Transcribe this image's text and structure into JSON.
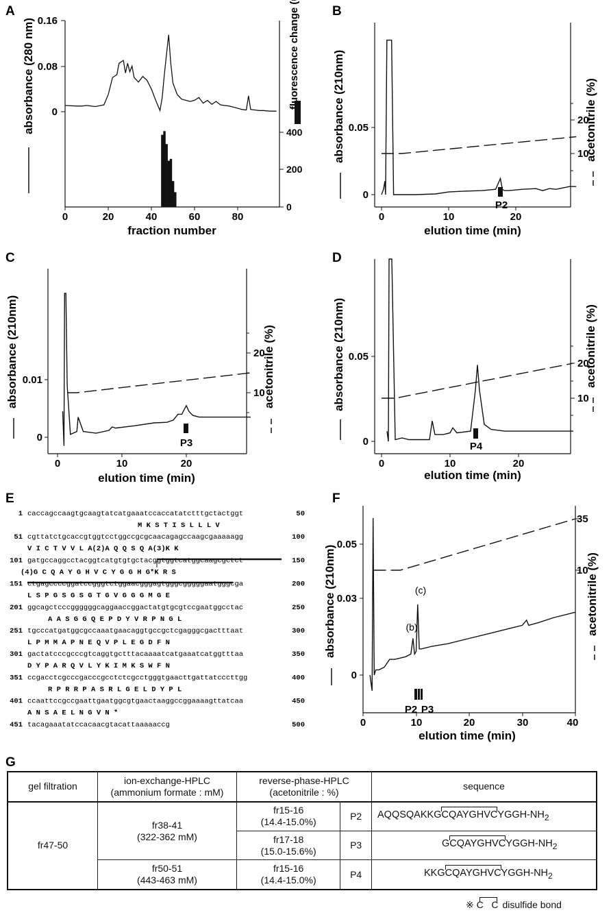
{
  "chart_data": [
    {
      "panel": "A",
      "type": "line",
      "xlabel": "fraction number",
      "ylabel": "absorbance  (280 nm)",
      "y2label": "fluorescence change  (units)",
      "xticks": [
        "0",
        "20",
        "40",
        "60",
        "80"
      ],
      "yticks": [
        "0",
        "0.08",
        "0.16"
      ],
      "y2ticks": [
        "0",
        "200",
        "400"
      ],
      "xlim": [
        0,
        100
      ],
      "ylim": [
        0,
        0.16
      ],
      "y2lim": [
        0,
        500
      ],
      "series": [
        {
          "name": "absorbance",
          "x": [
            0,
            5,
            8,
            10,
            14,
            18,
            20,
            22,
            24,
            25,
            27,
            28,
            29,
            30,
            31,
            32,
            34,
            36,
            38,
            40,
            42,
            44,
            45,
            46,
            47,
            48,
            49,
            50,
            52,
            54,
            56,
            58,
            60,
            62,
            64,
            66,
            68,
            70,
            72,
            74,
            76,
            78,
            80,
            82,
            84,
            85,
            86,
            88,
            90,
            92,
            95,
            98
          ],
          "y": [
            0.011,
            0.01,
            0.01,
            0.011,
            0.009,
            0.012,
            0.03,
            0.06,
            0.065,
            0.085,
            0.09,
            0.068,
            0.085,
            0.07,
            0.08,
            0.06,
            0.052,
            0.062,
            0.055,
            0.04,
            0.02,
            0.002,
            0.025,
            0.065,
            0.1,
            0.135,
            0.085,
            0.05,
            0.03,
            0.022,
            0.02,
            0.018,
            0.02,
            0.025,
            0.015,
            0.02,
            0.013,
            0.018,
            0.012,
            0.011,
            0.01,
            0.008,
            0.006,
            0.004,
            0.003,
            0.028,
            0.004,
            0.003,
            0.002,
            0.002,
            0.001,
            0.001
          ]
        },
        {
          "name": "fluorescence",
          "x": [
            45,
            46,
            47,
            48,
            49,
            50,
            51
          ],
          "y": [
            390,
            410,
            340,
            250,
            260,
            140,
            80
          ]
        }
      ]
    },
    {
      "panel": "B",
      "type": "line",
      "xlabel": "elution time (min)",
      "ylabel": "absorbance (210nm)",
      "y2label": "acetonitrile (%)",
      "xticks": [
        "0",
        "10",
        "20"
      ],
      "yticks": [
        "0",
        "0.05"
      ],
      "y2ticks": [
        "10",
        "20"
      ],
      "xlim": [
        -1,
        29
      ],
      "ylim": [
        0,
        0.05
      ],
      "peak_label": "P2",
      "series": [
        {
          "name": "absorbance",
          "x": [
            0,
            0.3,
            0.5,
            0.6,
            0.8,
            1.2,
            1.5,
            1.8,
            2,
            3,
            5,
            8,
            10,
            12,
            15,
            17,
            17.7,
            18,
            18.3,
            19,
            21,
            23,
            24,
            25,
            26,
            27,
            28,
            29
          ],
          "y": [
            0,
            0.004,
            0.01,
            0.0,
            0.115,
            0.115,
            0.115,
            0.0,
            0.0,
            0.0,
            0.0,
            0.0005,
            0.002,
            0.0025,
            0.003,
            0.004,
            0.012,
            0.004,
            0.003,
            0.003,
            0.004,
            0.0045,
            0.003,
            0.0045,
            0.004,
            0.005,
            0.006,
            0.006
          ]
        },
        {
          "name": "acetonitrile",
          "x": [
            0,
            3,
            29
          ],
          "y": [
            10,
            10,
            15
          ]
        }
      ]
    },
    {
      "panel": "C",
      "type": "line",
      "xlabel": "elution time (min)",
      "ylabel": "absorbance (210nm)",
      "y2label": "acetonitrile (%)",
      "xticks": [
        "0",
        "10",
        "20"
      ],
      "yticks": [
        "0",
        "0.01"
      ],
      "y2ticks": [
        "10",
        "20"
      ],
      "xlim": [
        -1,
        30
      ],
      "ylim": [
        0,
        0.01
      ],
      "peak_label": "P3",
      "series": [
        {
          "name": "absorbance",
          "x": [
            0.8,
            1,
            1.1,
            1.3,
            1.5,
            2,
            3,
            3.2,
            4,
            6,
            8,
            8.5,
            9,
            12,
            15,
            17,
            18,
            18.7,
            19.3,
            20,
            20.4,
            21,
            22,
            25,
            28,
            30
          ],
          "y": [
            0.0045,
            -0.0015,
            0.025,
            0.025,
            0.009,
            0.0005,
            0.001,
            0.0035,
            0.001,
            0.0007,
            0.0012,
            0.0018,
            0.0016,
            0.002,
            0.0025,
            0.0026,
            0.003,
            0.004,
            0.004,
            0.0055,
            0.0045,
            0.0038,
            0.0035,
            0.0035,
            0.0035,
            0.0035
          ]
        },
        {
          "name": "acetonitrile",
          "x": [
            1.5,
            3,
            30
          ],
          "y": [
            10,
            10,
            15
          ]
        }
      ]
    },
    {
      "panel": "D",
      "type": "line",
      "xlabel": "elution time (min)",
      "ylabel": "absorbance (210nm)",
      "y2label": "acetonitrile (%)",
      "xticks": [
        "0",
        "10",
        "20"
      ],
      "yticks": [
        "0",
        "0.05"
      ],
      "y2ticks": [
        "10",
        "20"
      ],
      "xlim": [
        -1,
        28
      ],
      "ylim": [
        0,
        0.05
      ],
      "peak_label": "P4",
      "series": [
        {
          "name": "absorbance",
          "x": [
            0.8,
            1,
            1.1,
            1.3,
            1.5,
            2,
            3,
            4,
            6,
            7,
            7.4,
            7.8,
            9,
            10,
            10.4,
            11,
            13,
            13.7,
            14,
            14.3,
            15,
            16,
            18,
            21,
            25,
            28
          ],
          "y": [
            0.006,
            0.0,
            0.115,
            0.115,
            0.115,
            0.001,
            0.002,
            0.001,
            0.001,
            0.001,
            0.012,
            0.004,
            0.004,
            0.005,
            0.008,
            0.005,
            0.006,
            0.03,
            0.045,
            0.03,
            0.01,
            0.007,
            0.006,
            0.006,
            0.006,
            0.006
          ]
        },
        {
          "name": "acetonitrile",
          "x": [
            0,
            2,
            28
          ],
          "y": [
            10,
            10,
            20
          ]
        }
      ]
    },
    {
      "panel": "F",
      "type": "line",
      "xlabel": "elution time (min)",
      "ylabel": "absorbance (210nm)",
      "y2label": "acetonitrile (%)",
      "xticks": [
        "0",
        "10",
        "20",
        "30",
        "40"
      ],
      "yticks": [
        "0",
        "0.03",
        "0.05"
      ],
      "y2ticks": [
        "10",
        "35"
      ],
      "xlim": [
        0,
        40
      ],
      "ylim": [
        0,
        0.05
      ],
      "peak_labels": [
        "(b)",
        "(c)",
        "P2",
        "P3"
      ],
      "series": [
        {
          "name": "absorbance",
          "x": [
            1.3,
            1.7,
            1.9,
            2.1,
            2.4,
            3,
            4,
            5,
            6,
            8,
            9,
            9.4,
            9.7,
            10,
            10.3,
            10.6,
            11,
            13,
            16,
            20,
            24,
            28,
            30,
            30.8,
            31.2,
            33,
            36,
            40
          ],
          "y": [
            0.0,
            -0.006,
            0.06,
            0.0,
            0.002,
            0.002,
            0.003,
            0.006,
            0.006,
            0.007,
            0.008,
            0.014,
            0.008,
            0.009,
            0.027,
            0.01,
            0.01,
            0.011,
            0.012,
            0.014,
            0.016,
            0.018,
            0.019,
            0.021,
            0.019,
            0.02,
            0.022,
            0.024
          ]
        },
        {
          "name": "acetonitrile",
          "x": [
            2,
            7,
            40
          ],
          "y": [
            10,
            10,
            35
          ]
        }
      ]
    }
  ],
  "panel_letters": {
    "a": "A",
    "b": "B",
    "c": "C",
    "d": "D",
    "e": "E",
    "f": "F",
    "g": "G"
  },
  "sequence_panel": {
    "lines": [
      {
        "start": "1",
        "seq": "caccagccaagtgcaagtatcatgaaatccaccatatctttgctactggt",
        "end": "50",
        "aa": "M K S T I S L L L V"
      },
      {
        "start": "51",
        "seq": "cgttatctgcaccgtggtcctggccgcgcaacagagccaagcgaaaaagg",
        "end": "100",
        "aa": "V I C T V V L A(2)A Q Q S Q A(3)K K"
      },
      {
        "start": "101",
        "seq": "gatgccaggcctacggtcatgtgtgctacggtggtcatggcaagcgctct",
        "end": "150",
        "aa": "(4)G C Q A Y G H V C Y G G H G*K R S"
      },
      {
        "start": "151",
        "seq": "ctgagccccggatccgggtctggaacgggagtgggcgggggaatgggcga",
        "end": "200",
        "aa": "L S P G S G S G T G V G G G M G E"
      },
      {
        "start": "201",
        "seq": "ggcagctcccggggggcaggaaccggactatgtgcgtccgaatggcctac",
        "end": "250",
        "aa": "A A S G G Q E P D Y V R P N G L"
      },
      {
        "start": "251",
        "seq": "tgcccatgatggcgccaaatgaacaggtgccgctcgagggcgactttaat",
        "end": "300",
        "aa": "L P M M A P N E Q V P L E G D F N"
      },
      {
        "start": "301",
        "seq": "gactatcccgcccgtcaggtgctttacaaaatcatgaaatcatggtttaa",
        "end": "350",
        "aa": "D Y P A R Q V L Y K I M K S W F N"
      },
      {
        "start": "351",
        "seq": "ccgacctcgcccgacccgcctctcgcctgggtgaacttgattatcccttgg",
        "end": "400",
        "aa": "R P R R P A S R L G E L D Y P L"
      },
      {
        "start": "401",
        "seq": "ccaattccgccgaattgaatggcgtgaactaaggccggaaaagttatcaa",
        "end": "450",
        "aa": "A N S A E L N G V N *"
      },
      {
        "start": "451",
        "seq": "tacagaaatatccacaacgtacattaaaaaccg",
        "end": "500",
        "aa": ""
      }
    ]
  },
  "table_g": {
    "headers": [
      "gel filtration",
      "ion-exchange-HPLC",
      "(ammonium formate : mM)",
      "reverse-phase-HPLC",
      "(acetonitrile : %)",
      "sequence"
    ],
    "gel": "fr47-50",
    "ion1": "fr38-41",
    "ion1b": "(322-362 mM)",
    "ion2": "fr50-51",
    "ion2b": "(443-463 mM)",
    "rows": [
      {
        "rp": "fr15-16",
        "rp2": "(14.4-15.0%)",
        "peak": "P2",
        "pre": "AQQSQAKKG",
        "loop": "CQAYGHVC",
        "post": "YGGH-NH",
        "sub": "2"
      },
      {
        "rp": "fr17-18",
        "rp2": "(15.0-15.6%)",
        "peak": "P3",
        "pre": "G",
        "loop": "CQAYGHVC",
        "post": "YGGH-NH",
        "sub": "2"
      },
      {
        "rp": "fr15-16",
        "rp2": "(14.4-15.0%)",
        "peak": "P4",
        "pre": "KKG",
        "loop": "CQAYGHVC",
        "post": "YGGH-NH",
        "sub": "2"
      }
    ],
    "legend_mark": "※",
    "legend_c": "C",
    "legend_c2": "C",
    "legend_text": "disulfide bond"
  }
}
